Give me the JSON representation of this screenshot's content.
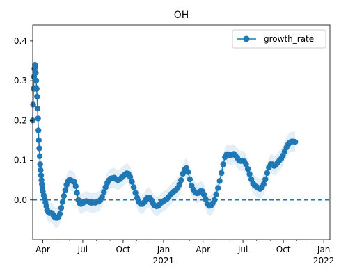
{
  "chart_data": {
    "type": "line",
    "title": "OH",
    "xlabel": "",
    "ylabel": "",
    "x_range": [
      "2020-03-09",
      "2022-01-15"
    ],
    "ylim": [
      -0.1,
      0.44
    ],
    "x_ticks": [
      {
        "date": "2020-04-01",
        "label": "Apr",
        "sublabel": ""
      },
      {
        "date": "2020-07-01",
        "label": "Jul",
        "sublabel": ""
      },
      {
        "date": "2020-10-01",
        "label": "Oct",
        "sublabel": ""
      },
      {
        "date": "2021-01-01",
        "label": "Jan",
        "sublabel": "2021"
      },
      {
        "date": "2021-04-01",
        "label": "Apr",
        "sublabel": ""
      },
      {
        "date": "2021-07-01",
        "label": "Jul",
        "sublabel": ""
      },
      {
        "date": "2021-10-01",
        "label": "Oct",
        "sublabel": ""
      },
      {
        "date": "2022-01-01",
        "label": "Jan",
        "sublabel": "2022"
      }
    ],
    "y_ticks": [
      "0.0",
      "0.1",
      "0.2",
      "0.3",
      "0.4"
    ],
    "y_tick_values": [
      0.0,
      0.1,
      0.2,
      0.3,
      0.4
    ],
    "reference_line": {
      "y": 0.0,
      "style": "dashed"
    },
    "legend": {
      "placement": "top-right",
      "entries": [
        "growth_rate"
      ]
    },
    "grid": false,
    "series": [
      {
        "name": "growth_rate",
        "color": "#1f77b4",
        "band_color": "#1f77b4",
        "points": [
          [
            "2020-03-09",
            0.2
          ],
          [
            "2020-03-10",
            0.24
          ],
          [
            "2020-03-11",
            0.28
          ],
          [
            "2020-03-12",
            0.31
          ],
          [
            "2020-03-13",
            0.33
          ],
          [
            "2020-03-14",
            0.34
          ],
          [
            "2020-03-15",
            0.335
          ],
          [
            "2020-03-16",
            0.32
          ],
          [
            "2020-03-17",
            0.3
          ],
          [
            "2020-03-18",
            0.28
          ],
          [
            "2020-03-19",
            0.26
          ],
          [
            "2020-03-20",
            0.23
          ],
          [
            "2020-03-21",
            0.205
          ],
          [
            "2020-03-22",
            0.175
          ],
          [
            "2020-03-23",
            0.15
          ],
          [
            "2020-03-24",
            0.13
          ],
          [
            "2020-03-25",
            0.11
          ],
          [
            "2020-03-26",
            0.09
          ],
          [
            "2020-03-27",
            0.075
          ],
          [
            "2020-03-28",
            0.062
          ],
          [
            "2020-03-29",
            0.05
          ],
          [
            "2020-03-30",
            0.04
          ],
          [
            "2020-03-31",
            0.03
          ],
          [
            "2020-04-01",
            0.022
          ],
          [
            "2020-04-03",
            0.012
          ],
          [
            "2020-04-05",
            0.004
          ],
          [
            "2020-04-07",
            -0.006
          ],
          [
            "2020-04-09",
            -0.016
          ],
          [
            "2020-04-11",
            -0.025
          ],
          [
            "2020-04-13",
            -0.03
          ],
          [
            "2020-04-16",
            -0.033
          ],
          [
            "2020-04-19",
            -0.032
          ],
          [
            "2020-04-22",
            -0.033
          ],
          [
            "2020-04-25",
            -0.038
          ],
          [
            "2020-04-28",
            -0.043
          ],
          [
            "2020-05-01",
            -0.045
          ],
          [
            "2020-05-04",
            -0.045
          ],
          [
            "2020-05-07",
            -0.042
          ],
          [
            "2020-05-10",
            -0.035
          ],
          [
            "2020-05-13",
            -0.02
          ],
          [
            "2020-05-16",
            -0.005
          ],
          [
            "2020-05-19",
            0.01
          ],
          [
            "2020-05-22",
            0.025
          ],
          [
            "2020-05-25",
            0.038
          ],
          [
            "2020-05-28",
            0.046
          ],
          [
            "2020-05-31",
            0.05
          ],
          [
            "2020-06-03",
            0.05
          ],
          [
            "2020-06-06",
            0.048
          ],
          [
            "2020-06-09",
            0.047
          ],
          [
            "2020-06-12",
            0.045
          ],
          [
            "2020-06-15",
            0.035
          ],
          [
            "2020-06-18",
            0.018
          ],
          [
            "2020-06-21",
            0.0
          ],
          [
            "2020-06-24",
            -0.008
          ],
          [
            "2020-06-27",
            -0.01
          ],
          [
            "2020-07-01",
            -0.008
          ],
          [
            "2020-07-05",
            -0.005
          ],
          [
            "2020-07-09",
            -0.003
          ],
          [
            "2020-07-13",
            -0.004
          ],
          [
            "2020-07-17",
            -0.006
          ],
          [
            "2020-07-21",
            -0.007
          ],
          [
            "2020-07-25",
            -0.006
          ],
          [
            "2020-07-29",
            -0.007
          ],
          [
            "2020-08-02",
            -0.005
          ],
          [
            "2020-08-06",
            -0.004
          ],
          [
            "2020-08-10",
            0.0
          ],
          [
            "2020-08-14",
            0.008
          ],
          [
            "2020-08-18",
            0.02
          ],
          [
            "2020-08-22",
            0.032
          ],
          [
            "2020-08-26",
            0.043
          ],
          [
            "2020-08-30",
            0.05
          ],
          [
            "2020-09-03",
            0.054
          ],
          [
            "2020-09-07",
            0.055
          ],
          [
            "2020-09-11",
            0.056
          ],
          [
            "2020-09-15",
            0.052
          ],
          [
            "2020-09-19",
            0.05
          ],
          [
            "2020-09-23",
            0.052
          ],
          [
            "2020-09-27",
            0.056
          ],
          [
            "2020-10-01",
            0.06
          ],
          [
            "2020-10-05",
            0.064
          ],
          [
            "2020-10-09",
            0.067
          ],
          [
            "2020-10-13",
            0.066
          ],
          [
            "2020-10-17",
            0.058
          ],
          [
            "2020-10-21",
            0.046
          ],
          [
            "2020-10-25",
            0.032
          ],
          [
            "2020-10-29",
            0.018
          ],
          [
            "2020-11-02",
            0.005
          ],
          [
            "2020-11-06",
            -0.005
          ],
          [
            "2020-11-10",
            -0.01
          ],
          [
            "2020-11-14",
            -0.01
          ],
          [
            "2020-11-18",
            -0.006
          ],
          [
            "2020-11-22",
            0.001
          ],
          [
            "2020-11-26",
            0.006
          ],
          [
            "2020-11-30",
            0.006
          ],
          [
            "2020-12-04",
            0.0
          ],
          [
            "2020-12-08",
            -0.008
          ],
          [
            "2020-12-12",
            -0.014
          ],
          [
            "2020-12-16",
            -0.016
          ],
          [
            "2020-12-20",
            -0.015
          ],
          [
            "2020-12-24",
            -0.01
          ],
          [
            "2020-12-28",
            -0.006
          ],
          [
            "2021-01-01",
            -0.003
          ],
          [
            "2021-01-05",
            0.0
          ],
          [
            "2021-01-09",
            0.003
          ],
          [
            "2021-01-13",
            0.008
          ],
          [
            "2021-01-17",
            0.014
          ],
          [
            "2021-01-21",
            0.018
          ],
          [
            "2021-01-25",
            0.022
          ],
          [
            "2021-01-29",
            0.025
          ],
          [
            "2021-02-02",
            0.03
          ],
          [
            "2021-02-06",
            0.038
          ],
          [
            "2021-02-10",
            0.05
          ],
          [
            "2021-02-14",
            0.066
          ],
          [
            "2021-02-18",
            0.076
          ],
          [
            "2021-02-22",
            0.08
          ],
          [
            "2021-02-26",
            0.07
          ],
          [
            "2021-03-02",
            0.052
          ],
          [
            "2021-03-06",
            0.036
          ],
          [
            "2021-03-10",
            0.026
          ],
          [
            "2021-03-14",
            0.02
          ],
          [
            "2021-03-18",
            0.017
          ],
          [
            "2021-03-22",
            0.018
          ],
          [
            "2021-03-26",
            0.022
          ],
          [
            "2021-03-30",
            0.022
          ],
          [
            "2021-04-03",
            0.014
          ],
          [
            "2021-04-07",
            0.002
          ],
          [
            "2021-04-11",
            -0.01
          ],
          [
            "2021-04-15",
            -0.015
          ],
          [
            "2021-04-19",
            -0.014
          ],
          [
            "2021-04-23",
            -0.008
          ],
          [
            "2021-04-27",
            0.0
          ],
          [
            "2021-05-01",
            0.014
          ],
          [
            "2021-05-05",
            0.03
          ],
          [
            "2021-05-09",
            0.048
          ],
          [
            "2021-05-13",
            0.068
          ],
          [
            "2021-05-17",
            0.09
          ],
          [
            "2021-05-21",
            0.108
          ],
          [
            "2021-05-25",
            0.115
          ],
          [
            "2021-05-29",
            0.115
          ],
          [
            "2021-06-02",
            0.112
          ],
          [
            "2021-06-06",
            0.114
          ],
          [
            "2021-06-10",
            0.116
          ],
          [
            "2021-06-14",
            0.112
          ],
          [
            "2021-06-18",
            0.106
          ],
          [
            "2021-06-22",
            0.1
          ],
          [
            "2021-06-26",
            0.098
          ],
          [
            "2021-06-30",
            0.099
          ],
          [
            "2021-07-04",
            0.097
          ],
          [
            "2021-07-08",
            0.09
          ],
          [
            "2021-07-12",
            0.078
          ],
          [
            "2021-07-16",
            0.065
          ],
          [
            "2021-07-20",
            0.052
          ],
          [
            "2021-07-24",
            0.042
          ],
          [
            "2021-07-28",
            0.036
          ],
          [
            "2021-08-01",
            0.033
          ],
          [
            "2021-08-05",
            0.03
          ],
          [
            "2021-08-09",
            0.028
          ],
          [
            "2021-08-13",
            0.032
          ],
          [
            "2021-08-17",
            0.04
          ],
          [
            "2021-08-21",
            0.052
          ],
          [
            "2021-08-25",
            0.068
          ],
          [
            "2021-08-29",
            0.082
          ],
          [
            "2021-09-02",
            0.09
          ],
          [
            "2021-09-06",
            0.09
          ],
          [
            "2021-09-10",
            0.086
          ],
          [
            "2021-09-14",
            0.088
          ],
          [
            "2021-09-18",
            0.094
          ],
          [
            "2021-09-22",
            0.1
          ],
          [
            "2021-09-26",
            0.104
          ],
          [
            "2021-09-30",
            0.112
          ],
          [
            "2021-10-04",
            0.122
          ],
          [
            "2021-10-08",
            0.132
          ],
          [
            "2021-10-12",
            0.14
          ],
          [
            "2021-10-16",
            0.145
          ],
          [
            "2021-10-20",
            0.147
          ],
          [
            "2021-10-24",
            0.147
          ],
          [
            "2021-10-28",
            0.146
          ]
        ],
        "band_halfwidth": 0.025
      }
    ]
  }
}
